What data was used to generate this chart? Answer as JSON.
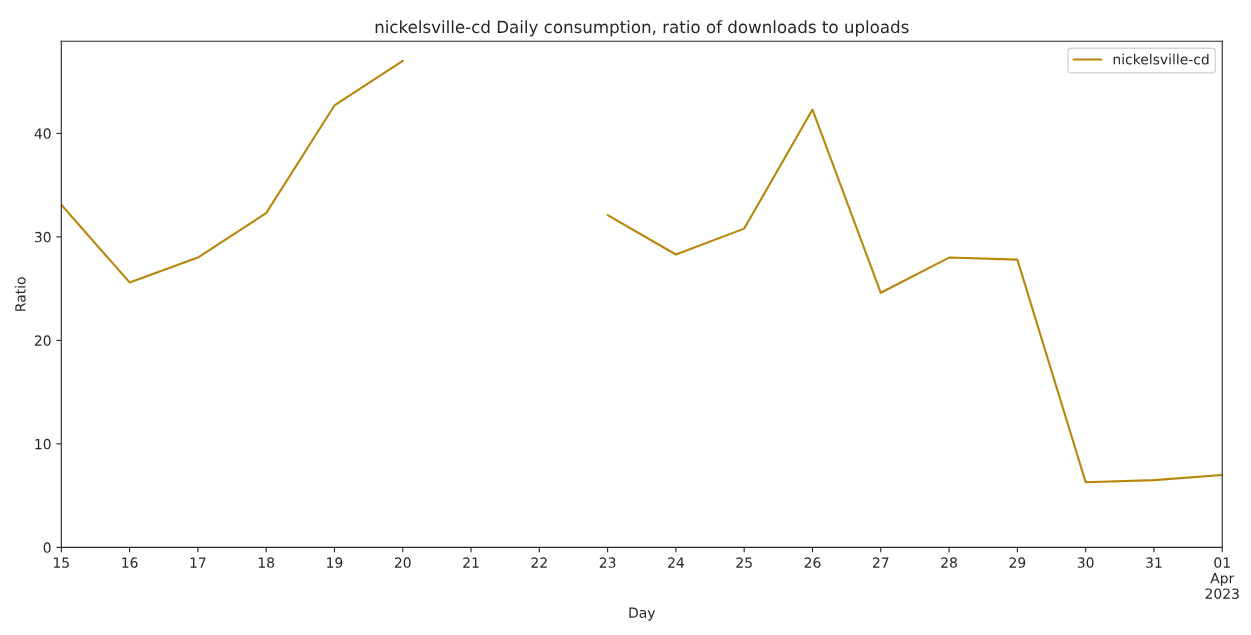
{
  "chart_data": {
    "type": "line",
    "title": "nickelsville-cd Daily consumption, ratio of downloads to uploads",
    "xlabel": "Day",
    "ylabel": "Ratio",
    "x": [
      "2023-03-15",
      "2023-03-16",
      "2023-03-17",
      "2023-03-18",
      "2023-03-19",
      "2023-03-20",
      "2023-03-21",
      "2023-03-22",
      "2023-03-23",
      "2023-03-24",
      "2023-03-25",
      "2023-03-26",
      "2023-03-27",
      "2023-03-28",
      "2023-03-29",
      "2023-03-30",
      "2023-03-31",
      "2023-04-01"
    ],
    "series": [
      {
        "name": "nickelsville-cd",
        "color": "#b8860b",
        "values": [
          33.1,
          25.6,
          28.0,
          32.3,
          42.7,
          47.0,
          null,
          null,
          32.1,
          28.3,
          30.8,
          42.3,
          24.6,
          28.0,
          27.8,
          6.3,
          6.5,
          7.0
        ]
      }
    ],
    "xlim": [
      "2023-03-15",
      "2023-04-01"
    ],
    "xticks": [
      {
        "value": "2023-03-15",
        "label": "15"
      },
      {
        "value": "2023-03-16",
        "label": "16"
      },
      {
        "value": "2023-03-17",
        "label": "17"
      },
      {
        "value": "2023-03-18",
        "label": "18"
      },
      {
        "value": "2023-03-19",
        "label": "19"
      },
      {
        "value": "2023-03-20",
        "label": "20"
      },
      {
        "value": "2023-03-21",
        "label": "21"
      },
      {
        "value": "2023-03-22",
        "label": "22"
      },
      {
        "value": "2023-03-23",
        "label": "23"
      },
      {
        "value": "2023-03-24",
        "label": "24"
      },
      {
        "value": "2023-03-25",
        "label": "25"
      },
      {
        "value": "2023-03-26",
        "label": "26"
      },
      {
        "value": "2023-03-27",
        "label": "27"
      },
      {
        "value": "2023-03-28",
        "label": "28"
      },
      {
        "value": "2023-03-29",
        "label": "29"
      },
      {
        "value": "2023-03-30",
        "label": "30"
      },
      {
        "value": "2023-03-31",
        "label": "31"
      },
      {
        "value": "2023-04-01",
        "label": "01\nApr\n2023"
      }
    ],
    "ylim": [
      0,
      48.9
    ],
    "yticks": [
      0,
      10,
      20,
      30,
      40
    ],
    "grid": false,
    "legend": "top right",
    "marker": "none",
    "line_style": "solid"
  }
}
